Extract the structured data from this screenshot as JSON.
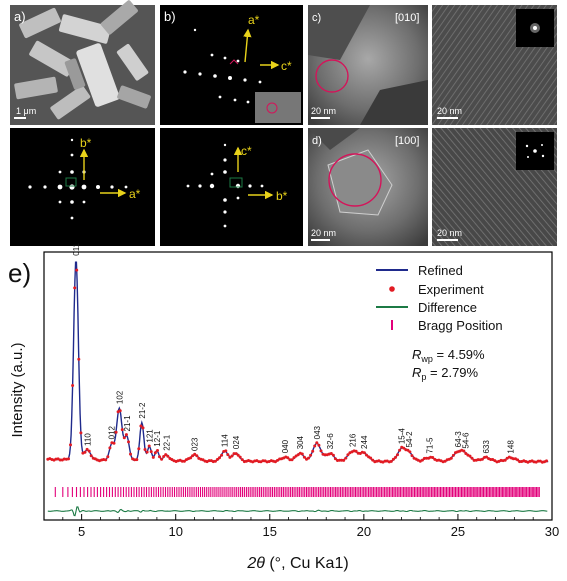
{
  "panels": {
    "a": {
      "label": "a)",
      "scale_bar": "1 μm"
    },
    "b": {
      "label": "b)"
    },
    "c": {
      "label": "c)",
      "zone_axis": "[010]",
      "scale_left": "20 nm",
      "scale_right": "20 nm"
    },
    "d": {
      "label": "d)",
      "zone_axis": "[100]",
      "scale_left": "20 nm",
      "scale_right": "20 nm"
    },
    "e": {
      "label": "e)"
    },
    "saed": {
      "b_top": [
        "a*",
        "c*"
      ],
      "a_bottom": [
        "b*",
        "a*"
      ],
      "b_bottom": [
        "c*",
        "b*"
      ]
    }
  },
  "colors": {
    "refined": "#1f2a8c",
    "experiment": "#e21b23",
    "difference": "#1c7a45",
    "bragg": "#e2007a",
    "arrow": "#e8d21a",
    "circle": "#d4145a"
  },
  "chart_data": {
    "type": "line",
    "xlabel_main": "2θ",
    "xlabel_unit": " (°, Cu Ka1)",
    "ylabel": "Intensity (a.u.)",
    "xlim": [
      3,
      30
    ],
    "xticks": [
      "5",
      "10",
      "15",
      "20",
      "25",
      "30"
    ],
    "legend": {
      "position": "top-right",
      "items": [
        "Refined",
        "Experiment",
        "Difference",
        "Bragg Position"
      ]
    },
    "stats": {
      "rwp_label": "R",
      "rwp_sub": "wp",
      "rwp_value": " = 4.59%",
      "rp_label": "R",
      "rp_sub": "p",
      "rp_value": "  = 2.79%"
    },
    "peaks": [
      {
        "x": 4.7,
        "h": 100,
        "w": 0.18,
        "label": "011"
      },
      {
        "x": 5.3,
        "h": 5,
        "w": 0.25,
        "label": "110"
      },
      {
        "x": 6.6,
        "h": 8,
        "w": 0.18,
        "label": "012"
      },
      {
        "x": 7.0,
        "h": 26,
        "w": 0.2,
        "label": "102"
      },
      {
        "x": 7.4,
        "h": 12,
        "w": 0.18,
        "label": "21-1"
      },
      {
        "x": 8.2,
        "h": 19,
        "w": 0.15,
        "label": "21-2"
      },
      {
        "x": 8.6,
        "h": 7,
        "w": 0.15,
        "label": "121"
      },
      {
        "x": 9.0,
        "h": 5,
        "w": 0.15,
        "label": "12-1"
      },
      {
        "x": 9.5,
        "h": 3,
        "w": 0.2,
        "label": "22-1"
      },
      {
        "x": 11.0,
        "h": 3,
        "w": 0.3,
        "label": "023"
      },
      {
        "x": 12.6,
        "h": 5,
        "w": 0.25,
        "label": "114"
      },
      {
        "x": 13.2,
        "h": 4,
        "w": 0.25,
        "label": "024"
      },
      {
        "x": 15.8,
        "h": 2,
        "w": 0.3,
        "label": "040"
      },
      {
        "x": 16.6,
        "h": 4,
        "w": 0.3,
        "label": "304"
      },
      {
        "x": 17.5,
        "h": 9,
        "w": 0.3,
        "label": "043"
      },
      {
        "x": 18.2,
        "h": 4,
        "w": 0.3,
        "label": "32-6"
      },
      {
        "x": 19.4,
        "h": 5,
        "w": 0.35,
        "label": "216"
      },
      {
        "x": 20.0,
        "h": 4,
        "w": 0.35,
        "label": "244"
      },
      {
        "x": 22.0,
        "h": 6,
        "w": 0.3,
        "label": "15-4"
      },
      {
        "x": 22.4,
        "h": 4,
        "w": 0.3,
        "label": "54-2"
      },
      {
        "x": 23.5,
        "h": 2,
        "w": 0.4,
        "label": "71-5"
      },
      {
        "x": 25.0,
        "h": 4,
        "w": 0.4,
        "label": "64-3"
      },
      {
        "x": 25.4,
        "h": 3,
        "w": 0.4,
        "label": "54-6"
      },
      {
        "x": 26.5,
        "h": 2,
        "w": 0.35,
        "label": "633"
      },
      {
        "x": 27.8,
        "h": 2,
        "w": 0.35,
        "label": "148"
      }
    ]
  }
}
